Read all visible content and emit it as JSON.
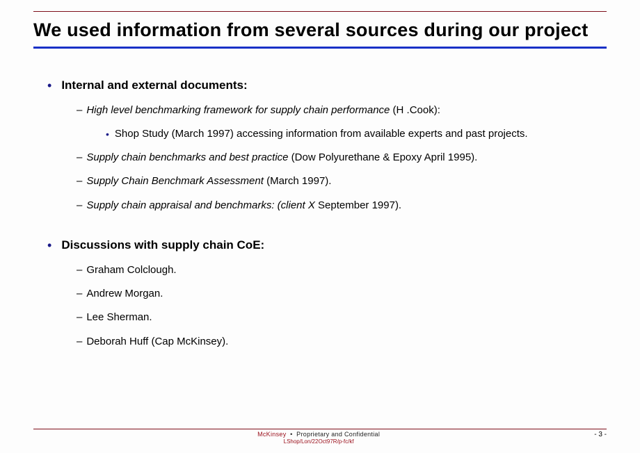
{
  "title": "We used information from several sources during our project",
  "sections": [
    {
      "heading": "Internal and external documents:",
      "items": [
        {
          "italic": "High level benchmarking framework  for supply chain performance",
          "rest": " (H .Cook):",
          "sub": "Shop Study (March 1997) accessing information from available experts and past projects."
        },
        {
          "italic": "Supply chain benchmarks and best practice",
          "rest": " (Dow Polyurethane  & Epoxy April 1995)."
        },
        {
          "italic": "Supply Chain Benchmark Assessment",
          "rest": " (March 1997)."
        },
        {
          "italic": "Supply chain appraisal and benchmarks:   (client X ",
          "rest": "September 1997)."
        }
      ]
    },
    {
      "heading": "Discussions with supply chain CoE:",
      "items": [
        {
          "plain": "Graham  Colclough."
        },
        {
          "plain": "Andrew Morgan."
        },
        {
          "plain": "Lee Sherman."
        },
        {
          "plain": "Deborah Huff (Cap McKinsey)."
        }
      ]
    }
  ],
  "footer": {
    "brand": "McKinsey",
    "sep": "•",
    "confidential": "Proprietary and Confidential",
    "docref": "LShop/Lon/22Oct97R/p-fc/kf",
    "page": "- 3 -"
  },
  "colors": {
    "rule": "#7d0d19",
    "blue": "#1830c6",
    "bullet": "#1a1a88",
    "brand": "#9a0e1a"
  }
}
